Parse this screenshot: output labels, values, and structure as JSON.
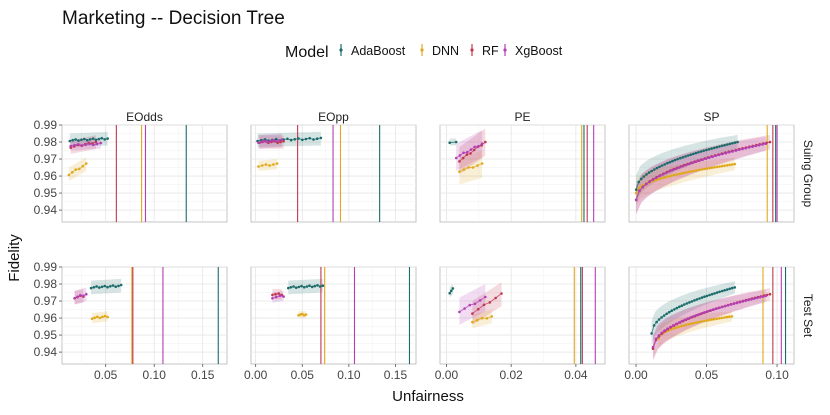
{
  "chart_data": {
    "type": "scatter",
    "title": "Marketing -- Decision Tree",
    "xlabel": "Unfairness",
    "ylabel": "Fidelity",
    "legend": {
      "title": "Model",
      "position": "top-center",
      "entries": [
        {
          "name": "AdaBoost",
          "color": "#1c6b6b"
        },
        {
          "name": "DNN",
          "color": "#e0a91c"
        },
        {
          "name": "RF",
          "color": "#c0394f"
        },
        {
          "name": "XgBoost",
          "color": "#b23fb6"
        }
      ]
    },
    "ylim": [
      0.933,
      0.99
    ],
    "yticks": [
      0.94,
      0.95,
      0.96,
      0.97,
      0.98,
      0.99
    ],
    "ytick_labels": [
      "0.94",
      "0.95",
      "0.96",
      "0.97",
      "0.98",
      "0.99"
    ],
    "columns": [
      {
        "label": "EOdds",
        "xlim": [
          0.005,
          0.175
        ],
        "xticks": [
          0.05,
          0.1,
          0.15
        ],
        "xtick_labels": [
          "0.05",
          "0.10",
          "0.15"
        ]
      },
      {
        "label": "EOpp",
        "xlim": [
          -0.005,
          0.172
        ],
        "xticks": [
          0.0,
          0.05,
          0.1,
          0.15
        ],
        "xtick_labels": [
          "0.00",
          "0.05",
          "0.10",
          "0.15"
        ]
      },
      {
        "label": "PE",
        "xlim": [
          -0.002,
          0.049
        ],
        "xticks": [
          0.0,
          0.02,
          0.04
        ],
        "xtick_labels": [
          "0.00",
          "0.02",
          "0.04"
        ]
      },
      {
        "label": "SP",
        "xlim": [
          -0.005,
          0.112
        ],
        "xticks": [
          0.0,
          0.05,
          0.1
        ],
        "xtick_labels": [
          "0.00",
          "0.05",
          "0.10"
        ]
      }
    ],
    "rows": [
      {
        "label": "Suing Group"
      },
      {
        "label": "Test Set"
      }
    ],
    "panels": [
      {
        "row": 0,
        "col": 0,
        "vlines": {
          "AdaBoost": 0.133,
          "DNN": 0.087,
          "RF": 0.061,
          "XgBoost": 0.091
        },
        "series": [
          {
            "name": "AdaBoost",
            "x0": 0.013,
            "x1": 0.052,
            "y0": 0.981,
            "y1": 0.982,
            "n": 14,
            "band": 0.004
          },
          {
            "name": "DNN",
            "x0": 0.012,
            "x1": 0.03,
            "y0": 0.961,
            "y1": 0.967,
            "n": 6,
            "band": 0.004
          },
          {
            "name": "RF",
            "x0": 0.014,
            "x1": 0.04,
            "y0": 0.977,
            "y1": 0.98,
            "n": 8,
            "band": 0.004
          },
          {
            "name": "XgBoost",
            "x0": 0.014,
            "x1": 0.045,
            "y0": 0.978,
            "y1": 0.979,
            "n": 9,
            "band": 0.003
          }
        ]
      },
      {
        "row": 0,
        "col": 1,
        "vlines": {
          "AdaBoost": 0.133,
          "DNN": 0.091,
          "RF": 0.045,
          "XgBoost": 0.083
        },
        "series": [
          {
            "name": "AdaBoost",
            "x0": 0.002,
            "x1": 0.07,
            "y0": 0.981,
            "y1": 0.982,
            "n": 18,
            "band": 0.004
          },
          {
            "name": "DNN",
            "x0": 0.003,
            "x1": 0.023,
            "y0": 0.966,
            "y1": 0.967,
            "n": 6,
            "band": 0.003
          },
          {
            "name": "RF",
            "x0": 0.004,
            "x1": 0.03,
            "y0": 0.98,
            "y1": 0.98,
            "n": 9,
            "band": 0.004
          },
          {
            "name": "XgBoost",
            "x0": 0.003,
            "x1": 0.028,
            "y0": 0.98,
            "y1": 0.981,
            "n": 9,
            "band": 0.004
          }
        ]
      },
      {
        "row": 0,
        "col": 2,
        "vlines": {
          "AdaBoost": 0.0425,
          "DNN": 0.0418,
          "RF": 0.0435,
          "XgBoost": 0.0455
        },
        "series": [
          {
            "name": "AdaBoost",
            "x0": 0.001,
            "x1": 0.003,
            "y0": 0.98,
            "y1": 0.98,
            "n": 2,
            "band": 0.002
          },
          {
            "name": "DNN",
            "x0": 0.004,
            "x1": 0.011,
            "y0": 0.963,
            "y1": 0.967,
            "n": 6,
            "band": 0.008
          },
          {
            "name": "RF",
            "x0": 0.004,
            "x1": 0.012,
            "y0": 0.969,
            "y1": 0.98,
            "n": 8,
            "band": 0.008
          },
          {
            "name": "XgBoost",
            "x0": 0.003,
            "x1": 0.011,
            "y0": 0.971,
            "y1": 0.979,
            "n": 8,
            "band": 0.008
          }
        ]
      },
      {
        "row": 0,
        "col": 3,
        "vlines": {
          "AdaBoost": 0.099,
          "DNN": 0.093,
          "RF": 0.097,
          "XgBoost": 0.1
        },
        "series": [
          {
            "name": "AdaBoost",
            "x0": 0.0,
            "x1": 0.072,
            "y0": 0.952,
            "y1": 0.98,
            "n": 40,
            "band": 0.007,
            "curve": true
          },
          {
            "name": "DNN",
            "x0": 0.0,
            "x1": 0.07,
            "y0": 0.95,
            "y1": 0.967,
            "n": 40,
            "band": 0.006,
            "curve": true
          },
          {
            "name": "RF",
            "x0": 0.0,
            "x1": 0.095,
            "y0": 0.946,
            "y1": 0.98,
            "n": 40,
            "band": 0.007,
            "curve": true
          },
          {
            "name": "XgBoost",
            "x0": 0.0,
            "x1": 0.092,
            "y0": 0.946,
            "y1": 0.979,
            "n": 40,
            "band": 0.007,
            "curve": true
          }
        ]
      },
      {
        "row": 1,
        "col": 0,
        "vlines": {
          "AdaBoost": 0.166,
          "DNN": 0.077,
          "RF": 0.078,
          "XgBoost": 0.109
        },
        "series": [
          {
            "name": "AdaBoost",
            "x0": 0.035,
            "x1": 0.066,
            "y0": 0.978,
            "y1": 0.979,
            "n": 12,
            "band": 0.004
          },
          {
            "name": "DNN",
            "x0": 0.036,
            "x1": 0.052,
            "y0": 0.96,
            "y1": 0.961,
            "n": 7,
            "band": 0.003
          },
          {
            "name": "RF",
            "x0": 0.018,
            "x1": 0.027,
            "y0": 0.972,
            "y1": 0.973,
            "n": 4,
            "band": 0.004
          },
          {
            "name": "XgBoost",
            "x0": 0.018,
            "x1": 0.03,
            "y0": 0.972,
            "y1": 0.974,
            "n": 5,
            "band": 0.004
          }
        ]
      },
      {
        "row": 1,
        "col": 1,
        "vlines": {
          "AdaBoost": 0.165,
          "DNN": 0.074,
          "RF": 0.07,
          "XgBoost": 0.106
        },
        "series": [
          {
            "name": "AdaBoost",
            "x0": 0.035,
            "x1": 0.072,
            "y0": 0.978,
            "y1": 0.979,
            "n": 14,
            "band": 0.004
          },
          {
            "name": "DNN",
            "x0": 0.046,
            "x1": 0.054,
            "y0": 0.962,
            "y1": 0.962,
            "n": 5,
            "band": 0.002
          },
          {
            "name": "RF",
            "x0": 0.018,
            "x1": 0.028,
            "y0": 0.974,
            "y1": 0.974,
            "n": 4,
            "band": 0.003
          },
          {
            "name": "XgBoost",
            "x0": 0.018,
            "x1": 0.03,
            "y0": 0.972,
            "y1": 0.973,
            "n": 4,
            "band": 0.003
          }
        ]
      },
      {
        "row": 1,
        "col": 2,
        "vlines": {
          "AdaBoost": 0.0415,
          "DNN": 0.0395,
          "RF": 0.042,
          "XgBoost": 0.046
        },
        "series": [
          {
            "name": "AdaBoost",
            "x0": 0.001,
            "x1": 0.002,
            "y0": 0.975,
            "y1": 0.977,
            "n": 3,
            "band": 0.003
          },
          {
            "name": "DNN",
            "x0": 0.008,
            "x1": 0.014,
            "y0": 0.958,
            "y1": 0.961,
            "n": 5,
            "band": 0.004
          },
          {
            "name": "RF",
            "x0": 0.008,
            "x1": 0.017,
            "y0": 0.963,
            "y1": 0.974,
            "n": 6,
            "band": 0.007
          },
          {
            "name": "XgBoost",
            "x0": 0.004,
            "x1": 0.012,
            "y0": 0.964,
            "y1": 0.972,
            "n": 6,
            "band": 0.008
          }
        ]
      },
      {
        "row": 1,
        "col": 3,
        "vlines": {
          "AdaBoost": 0.106,
          "DNN": 0.09,
          "RF": 0.097,
          "XgBoost": 0.103
        },
        "series": [
          {
            "name": "AdaBoost",
            "x0": 0.011,
            "x1": 0.07,
            "y0": 0.951,
            "y1": 0.978,
            "n": 34,
            "band": 0.006,
            "curve": true
          },
          {
            "name": "DNN",
            "x0": 0.016,
            "x1": 0.068,
            "y0": 0.948,
            "y1": 0.961,
            "n": 30,
            "band": 0.005,
            "curve": true
          },
          {
            "name": "RF",
            "x0": 0.012,
            "x1": 0.095,
            "y0": 0.942,
            "y1": 0.974,
            "n": 40,
            "band": 0.006,
            "curve": true
          },
          {
            "name": "XgBoost",
            "x0": 0.012,
            "x1": 0.092,
            "y0": 0.943,
            "y1": 0.973,
            "n": 40,
            "band": 0.006,
            "curve": true
          }
        ]
      }
    ]
  }
}
